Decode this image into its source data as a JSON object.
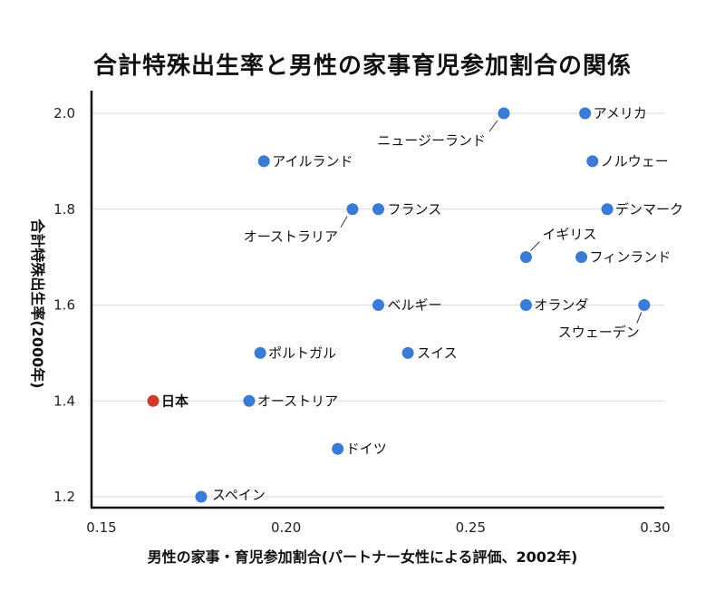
{
  "chart_data": {
    "type": "scatter",
    "title": "合計特殊出生率と男性の家事育児参加割合の関係",
    "xlabel": "男性の家事・育児参加割合(パートナー女性による評価、2002年)",
    "ylabel": "合計特殊出生率(2000年)",
    "xlim": [
      0.15,
      0.3
    ],
    "ylim": [
      1.2,
      2.0
    ],
    "xticks": [
      "0.15",
      "0.20",
      "0.25",
      "0.30"
    ],
    "yticks": [
      "1.2",
      "1.4",
      "1.6",
      "1.8",
      "2.0"
    ],
    "grid": "horizontal",
    "colors": {
      "default": "#3a7bd5",
      "highlight": "#d13a2a"
    },
    "points": [
      {
        "label": "アメリカ",
        "x": 0.281,
        "y": 2.0
      },
      {
        "label": "ニュージーランド",
        "x": 0.259,
        "y": 2.0
      },
      {
        "label": "アイルランド",
        "x": 0.194,
        "y": 1.9
      },
      {
        "label": "ノルウェー",
        "x": 0.283,
        "y": 1.9
      },
      {
        "label": "オーストラリア",
        "x": 0.218,
        "y": 1.8
      },
      {
        "label": "フランス",
        "x": 0.225,
        "y": 1.8
      },
      {
        "label": "デンマーク",
        "x": 0.287,
        "y": 1.8
      },
      {
        "label": "イギリス",
        "x": 0.265,
        "y": 1.7
      },
      {
        "label": "フィンランド",
        "x": 0.28,
        "y": 1.7
      },
      {
        "label": "ベルギー",
        "x": 0.225,
        "y": 1.6
      },
      {
        "label": "オランダ",
        "x": 0.265,
        "y": 1.6
      },
      {
        "label": "スウェーデン",
        "x": 0.297,
        "y": 1.6
      },
      {
        "label": "ポルトガル",
        "x": 0.193,
        "y": 1.5
      },
      {
        "label": "スイス",
        "x": 0.233,
        "y": 1.5
      },
      {
        "label": "日本",
        "x": 0.164,
        "y": 1.4,
        "highlight": true
      },
      {
        "label": "オーストリア",
        "x": 0.19,
        "y": 1.4
      },
      {
        "label": "ドイツ",
        "x": 0.214,
        "y": 1.3
      },
      {
        "label": "スペイン",
        "x": 0.177,
        "y": 1.2
      }
    ]
  }
}
